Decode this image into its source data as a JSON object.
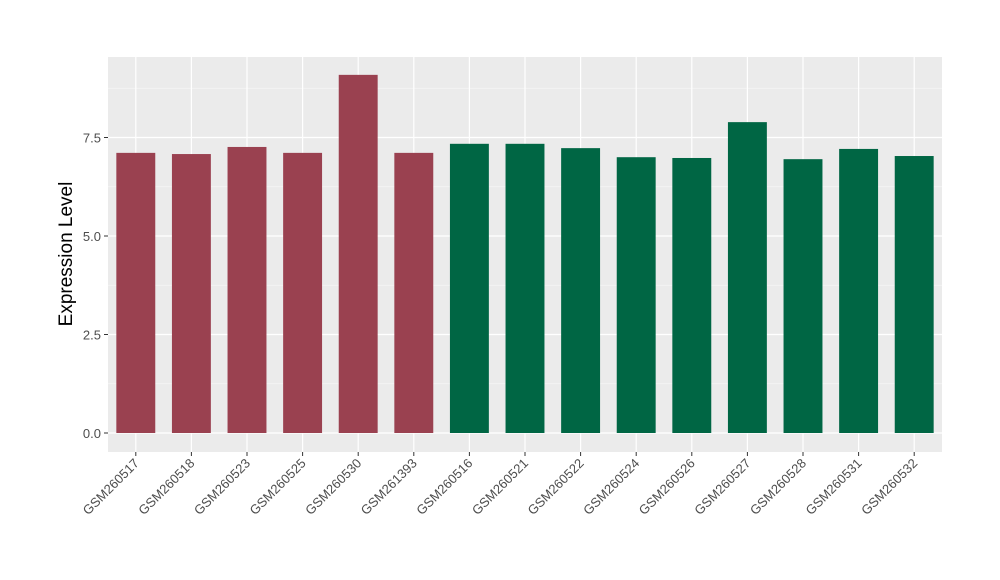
{
  "chart_data": {
    "type": "bar",
    "title": "",
    "xlabel": "",
    "ylabel": "Expression Level",
    "ylim": [
      0,
      9.5
    ],
    "yticks": [
      "0.0",
      "2.5",
      "5.0",
      "7.5"
    ],
    "grid": true,
    "categories": [
      "GSM260517",
      "GSM260518",
      "GSM260523",
      "GSM260525",
      "GSM260530",
      "GSM261393",
      "GSM260516",
      "GSM260521",
      "GSM260522",
      "GSM260524",
      "GSM260526",
      "GSM260527",
      "GSM260528",
      "GSM260531",
      "GSM260532"
    ],
    "values": [
      7.11,
      7.08,
      7.26,
      7.11,
      9.09,
      7.11,
      7.34,
      7.34,
      7.23,
      7.0,
      6.98,
      7.89,
      6.95,
      7.21,
      7.03
    ],
    "bar_colors": [
      "#9a4150",
      "#9a4150",
      "#9a4150",
      "#9a4150",
      "#9a4150",
      "#9a4150",
      "#006644",
      "#006644",
      "#006644",
      "#006644",
      "#006644",
      "#006644",
      "#006644",
      "#006644",
      "#006644"
    ],
    "panel_background": "#ebebeb"
  }
}
